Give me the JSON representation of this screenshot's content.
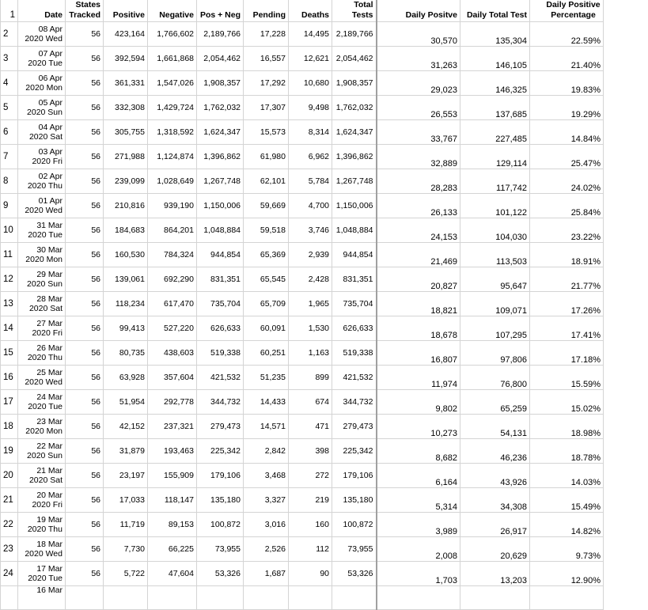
{
  "headers": {
    "row_num": "1",
    "date": "Date",
    "states": "States Tracked",
    "positive": "Positive",
    "negative": "Negative",
    "posneg": "Pos + Neg",
    "pending": "Pending",
    "deaths": "Deaths",
    "total": "Total Tests",
    "daily_positive": "Daily Positve",
    "daily_total": "Daily Total Test",
    "daily_pct": "Daily Positive Percentage"
  },
  "rows": [
    {
      "n": "2",
      "d1": "08 Apr",
      "d2": "2020 Wed",
      "st": "56",
      "pos": "423,164",
      "neg": "1,766,602",
      "pn": "2,189,766",
      "pend": "17,228",
      "dth": "14,495",
      "tot": "2,189,766",
      "dp": "30,570",
      "dt": "135,304",
      "pct": "22.59%"
    },
    {
      "n": "3",
      "d1": "07 Apr",
      "d2": "2020 Tue",
      "st": "56",
      "pos": "392,594",
      "neg": "1,661,868",
      "pn": "2,054,462",
      "pend": "16,557",
      "dth": "12,621",
      "tot": "2,054,462",
      "dp": "31,263",
      "dt": "146,105",
      "pct": "21.40%"
    },
    {
      "n": "4",
      "d1": "06 Apr",
      "d2": "2020 Mon",
      "st": "56",
      "pos": "361,331",
      "neg": "1,547,026",
      "pn": "1,908,357",
      "pend": "17,292",
      "dth": "10,680",
      "tot": "1,908,357",
      "dp": "29,023",
      "dt": "146,325",
      "pct": "19.83%"
    },
    {
      "n": "5",
      "d1": "05 Apr",
      "d2": "2020 Sun",
      "st": "56",
      "pos": "332,308",
      "neg": "1,429,724",
      "pn": "1,762,032",
      "pend": "17,307",
      "dth": "9,498",
      "tot": "1,762,032",
      "dp": "26,553",
      "dt": "137,685",
      "pct": "19.29%"
    },
    {
      "n": "6",
      "d1": "04 Apr",
      "d2": "2020 Sat",
      "st": "56",
      "pos": "305,755",
      "neg": "1,318,592",
      "pn": "1,624,347",
      "pend": "15,573",
      "dth": "8,314",
      "tot": "1,624,347",
      "dp": "33,767",
      "dt": "227,485",
      "pct": "14.84%"
    },
    {
      "n": "7",
      "d1": "03 Apr",
      "d2": "2020 Fri",
      "st": "56",
      "pos": "271,988",
      "neg": "1,124,874",
      "pn": "1,396,862",
      "pend": "61,980",
      "dth": "6,962",
      "tot": "1,396,862",
      "dp": "32,889",
      "dt": "129,114",
      "pct": "25.47%"
    },
    {
      "n": "8",
      "d1": "02 Apr",
      "d2": "2020 Thu",
      "st": "56",
      "pos": "239,099",
      "neg": "1,028,649",
      "pn": "1,267,748",
      "pend": "62,101",
      "dth": "5,784",
      "tot": "1,267,748",
      "dp": "28,283",
      "dt": "117,742",
      "pct": "24.02%"
    },
    {
      "n": "9",
      "d1": "01 Apr",
      "d2": "2020 Wed",
      "st": "56",
      "pos": "210,816",
      "neg": "939,190",
      "pn": "1,150,006",
      "pend": "59,669",
      "dth": "4,700",
      "tot": "1,150,006",
      "dp": "26,133",
      "dt": "101,122",
      "pct": "25.84%"
    },
    {
      "n": "10",
      "d1": "31 Mar",
      "d2": "2020 Tue",
      "st": "56",
      "pos": "184,683",
      "neg": "864,201",
      "pn": "1,048,884",
      "pend": "59,518",
      "dth": "3,746",
      "tot": "1,048,884",
      "dp": "24,153",
      "dt": "104,030",
      "pct": "23.22%"
    },
    {
      "n": "11",
      "d1": "30 Mar",
      "d2": "2020 Mon",
      "st": "56",
      "pos": "160,530",
      "neg": "784,324",
      "pn": "944,854",
      "pend": "65,369",
      "dth": "2,939",
      "tot": "944,854",
      "dp": "21,469",
      "dt": "113,503",
      "pct": "18.91%"
    },
    {
      "n": "12",
      "d1": "29 Mar",
      "d2": "2020 Sun",
      "st": "56",
      "pos": "139,061",
      "neg": "692,290",
      "pn": "831,351",
      "pend": "65,545",
      "dth": "2,428",
      "tot": "831,351",
      "dp": "20,827",
      "dt": "95,647",
      "pct": "21.77%"
    },
    {
      "n": "13",
      "d1": "28 Mar",
      "d2": "2020 Sat",
      "st": "56",
      "pos": "118,234",
      "neg": "617,470",
      "pn": "735,704",
      "pend": "65,709",
      "dth": "1,965",
      "tot": "735,704",
      "dp": "18,821",
      "dt": "109,071",
      "pct": "17.26%"
    },
    {
      "n": "14",
      "d1": "27 Mar",
      "d2": "2020 Fri",
      "st": "56",
      "pos": "99,413",
      "neg": "527,220",
      "pn": "626,633",
      "pend": "60,091",
      "dth": "1,530",
      "tot": "626,633",
      "dp": "18,678",
      "dt": "107,295",
      "pct": "17.41%"
    },
    {
      "n": "15",
      "d1": "26 Mar",
      "d2": "2020 Thu",
      "st": "56",
      "pos": "80,735",
      "neg": "438,603",
      "pn": "519,338",
      "pend": "60,251",
      "dth": "1,163",
      "tot": "519,338",
      "dp": "16,807",
      "dt": "97,806",
      "pct": "17.18%"
    },
    {
      "n": "16",
      "d1": "25 Mar",
      "d2": "2020 Wed",
      "st": "56",
      "pos": "63,928",
      "neg": "357,604",
      "pn": "421,532",
      "pend": "51,235",
      "dth": "899",
      "tot": "421,532",
      "dp": "11,974",
      "dt": "76,800",
      "pct": "15.59%"
    },
    {
      "n": "17",
      "d1": "24 Mar",
      "d2": "2020 Tue",
      "st": "56",
      "pos": "51,954",
      "neg": "292,778",
      "pn": "344,732",
      "pend": "14,433",
      "dth": "674",
      "tot": "344,732",
      "dp": "9,802",
      "dt": "65,259",
      "pct": "15.02%"
    },
    {
      "n": "18",
      "d1": "23 Mar",
      "d2": "2020 Mon",
      "st": "56",
      "pos": "42,152",
      "neg": "237,321",
      "pn": "279,473",
      "pend": "14,571",
      "dth": "471",
      "tot": "279,473",
      "dp": "10,273",
      "dt": "54,131",
      "pct": "18.98%"
    },
    {
      "n": "19",
      "d1": "22 Mar",
      "d2": "2020 Sun",
      "st": "56",
      "pos": "31,879",
      "neg": "193,463",
      "pn": "225,342",
      "pend": "2,842",
      "dth": "398",
      "tot": "225,342",
      "dp": "8,682",
      "dt": "46,236",
      "pct": "18.78%"
    },
    {
      "n": "20",
      "d1": "21 Mar",
      "d2": "2020 Sat",
      "st": "56",
      "pos": "23,197",
      "neg": "155,909",
      "pn": "179,106",
      "pend": "3,468",
      "dth": "272",
      "tot": "179,106",
      "dp": "6,164",
      "dt": "43,926",
      "pct": "14.03%"
    },
    {
      "n": "21",
      "d1": "20 Mar",
      "d2": "2020 Fri",
      "st": "56",
      "pos": "17,033",
      "neg": "118,147",
      "pn": "135,180",
      "pend": "3,327",
      "dth": "219",
      "tot": "135,180",
      "dp": "5,314",
      "dt": "34,308",
      "pct": "15.49%"
    },
    {
      "n": "22",
      "d1": "19 Mar",
      "d2": "2020 Thu",
      "st": "56",
      "pos": "11,719",
      "neg": "89,153",
      "pn": "100,872",
      "pend": "3,016",
      "dth": "160",
      "tot": "100,872",
      "dp": "3,989",
      "dt": "26,917",
      "pct": "14.82%"
    },
    {
      "n": "23",
      "d1": "18 Mar",
      "d2": "2020 Wed",
      "st": "56",
      "pos": "7,730",
      "neg": "66,225",
      "pn": "73,955",
      "pend": "2,526",
      "dth": "112",
      "tot": "73,955",
      "dp": "2,008",
      "dt": "20,629",
      "pct": "9.73%"
    },
    {
      "n": "24",
      "d1": "17 Mar",
      "d2": "2020 Tue",
      "st": "56",
      "pos": "5,722",
      "neg": "47,604",
      "pn": "53,326",
      "pend": "1,687",
      "dth": "90",
      "tot": "53,326",
      "dp": "1,703",
      "dt": "13,203",
      "pct": "12.90%"
    }
  ],
  "partial_row": {
    "d1": "16 Mar"
  }
}
